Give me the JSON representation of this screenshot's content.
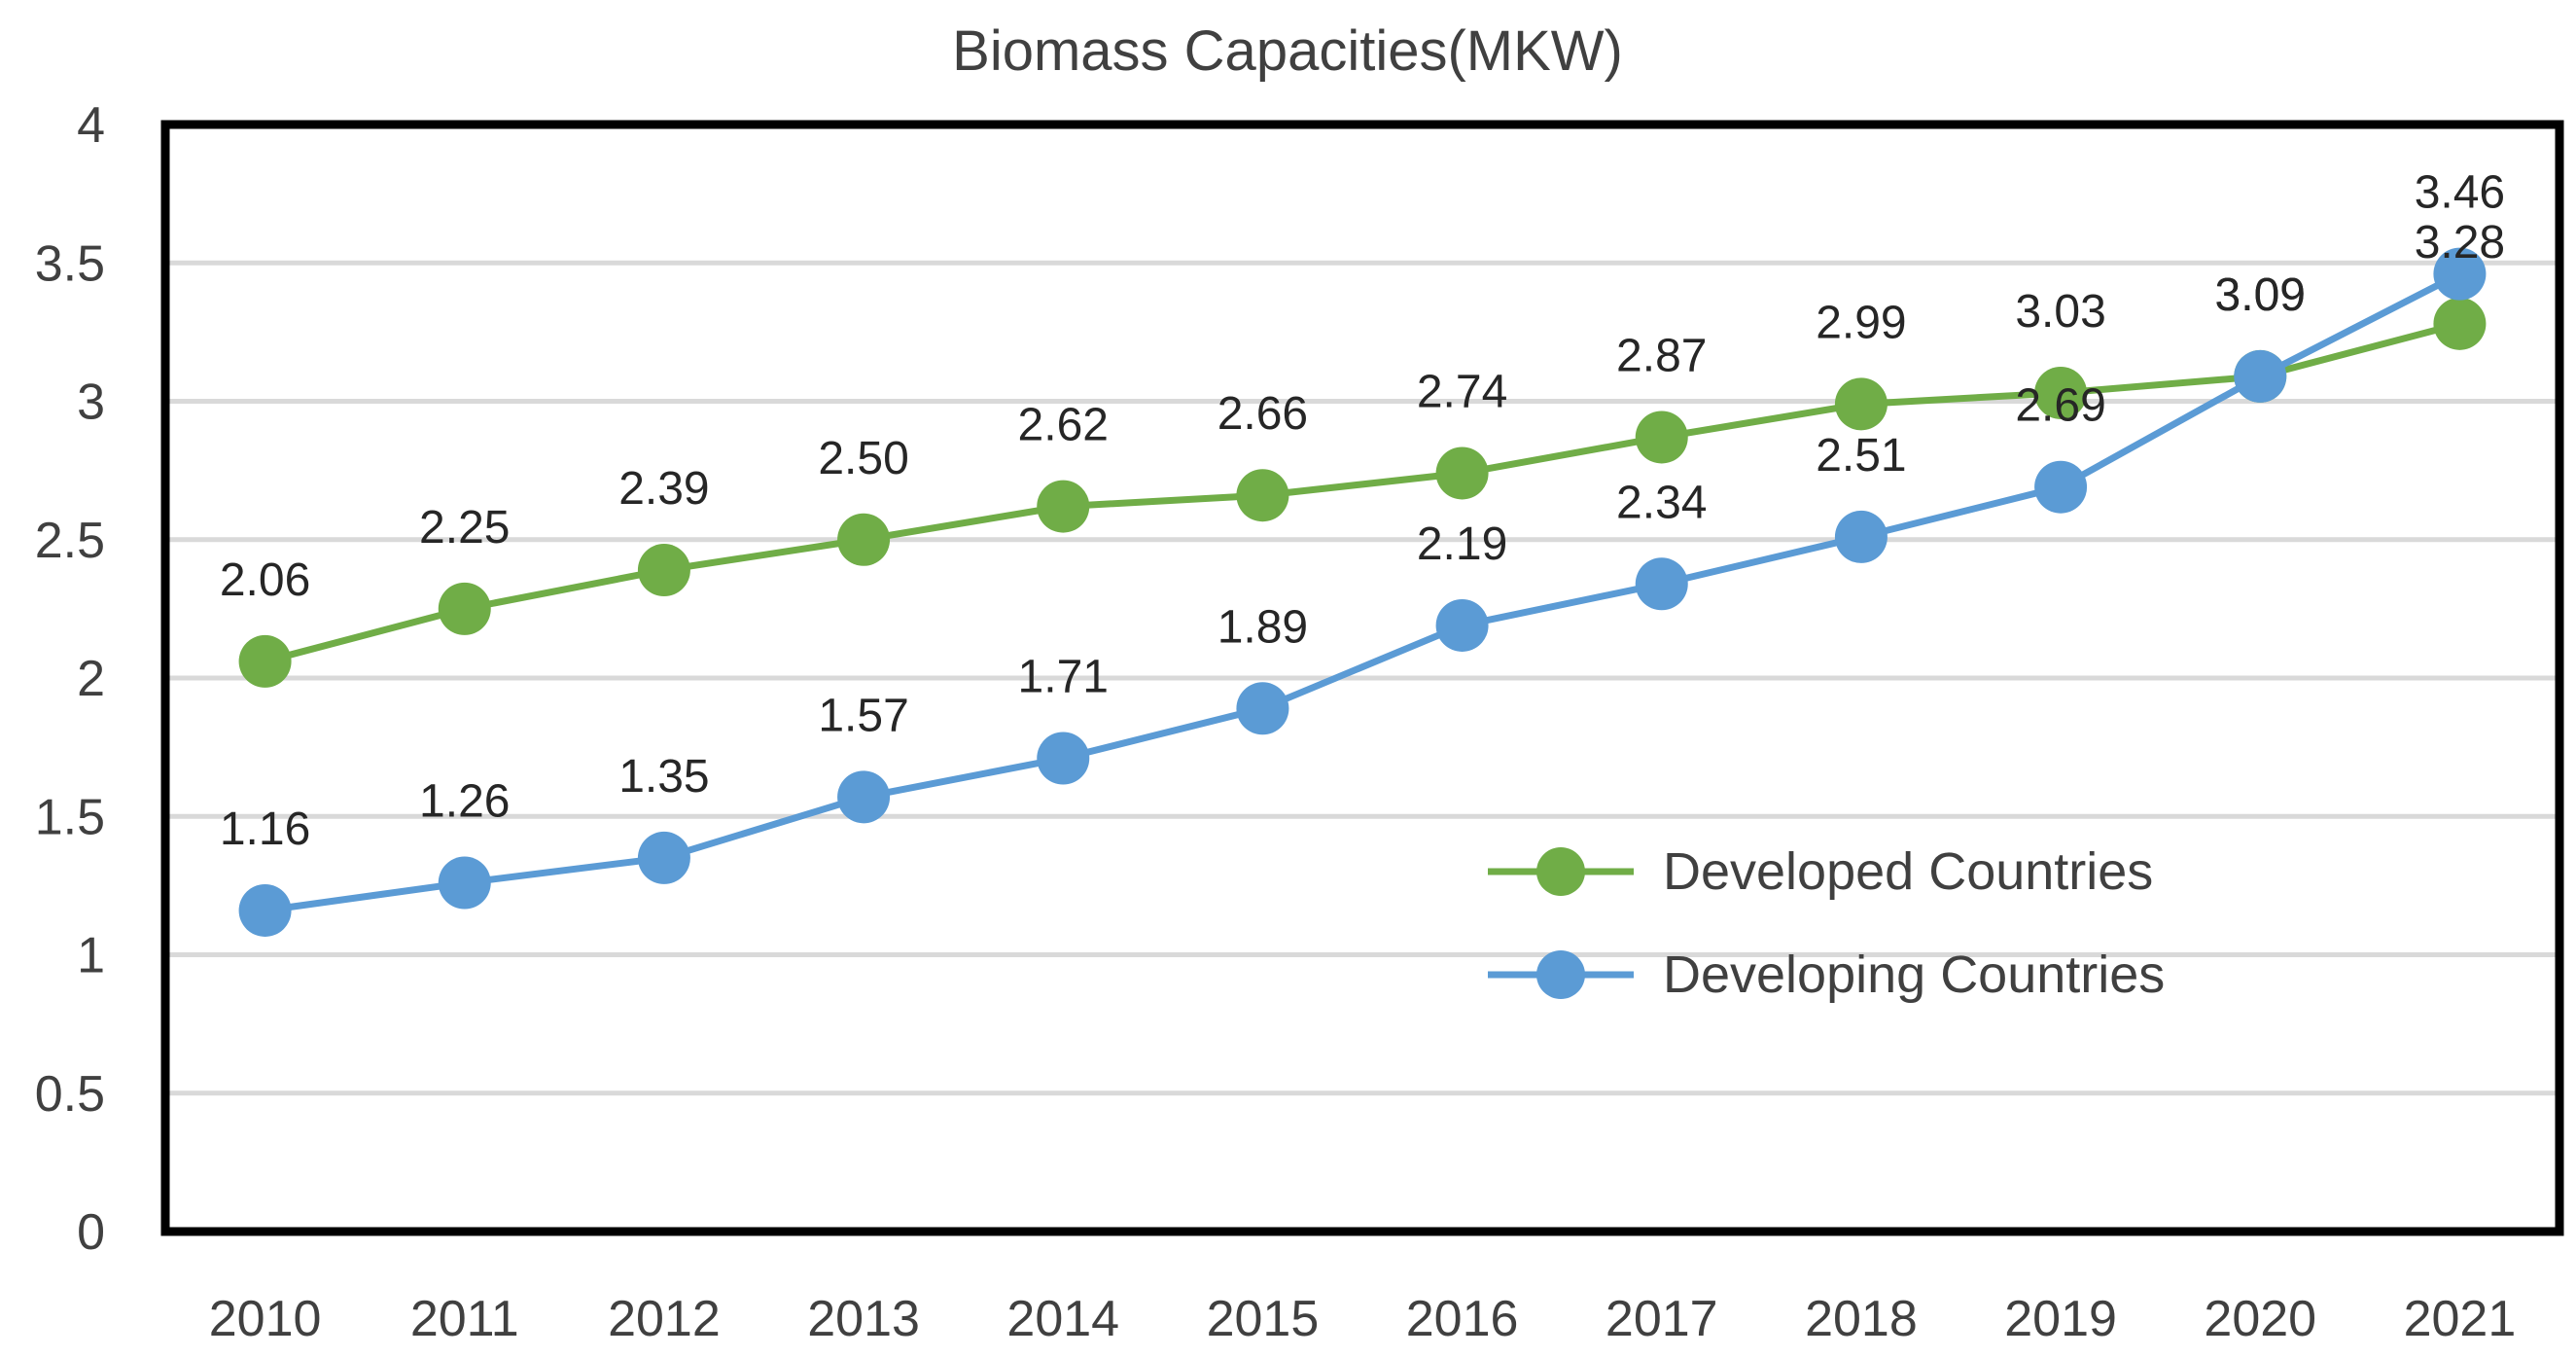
{
  "chart_data": {
    "type": "line",
    "title": "Biomass Capacities(MKW)",
    "xlabel": "",
    "ylabel": "",
    "categories": [
      "2010",
      "2011",
      "2012",
      "2013",
      "2014",
      "2015",
      "2016",
      "2017",
      "2018",
      "2019",
      "2020",
      "2021"
    ],
    "ylim": [
      0,
      4
    ],
    "yticks": [
      "0",
      "0.5",
      "1",
      "1.5",
      "2",
      "2.5",
      "3",
      "3.5",
      "4"
    ],
    "grid": true,
    "legend_position": "center-right",
    "series": [
      {
        "name": "Developed Countries",
        "color": "#70ad47",
        "values": [
          2.06,
          2.25,
          2.39,
          2.5,
          2.62,
          2.66,
          2.74,
          2.87,
          2.99,
          3.03,
          3.09,
          3.28
        ],
        "labels": [
          "2.06",
          "2.25",
          "2.39",
          "2.50",
          "2.62",
          "2.66",
          "2.74",
          "2.87",
          "2.99",
          "3.03",
          "3.09",
          "3.28"
        ]
      },
      {
        "name": "Developing Countries",
        "color": "#5b9bd5",
        "values": [
          1.16,
          1.26,
          1.35,
          1.57,
          1.71,
          1.89,
          2.19,
          2.34,
          2.51,
          2.69,
          3.09,
          3.46
        ],
        "labels": [
          "1.16",
          "1.26",
          "1.35",
          "1.57",
          "1.71",
          "1.89",
          "2.19",
          "2.34",
          "2.51",
          "2.69",
          "3.09",
          "3.46"
        ]
      }
    ]
  }
}
